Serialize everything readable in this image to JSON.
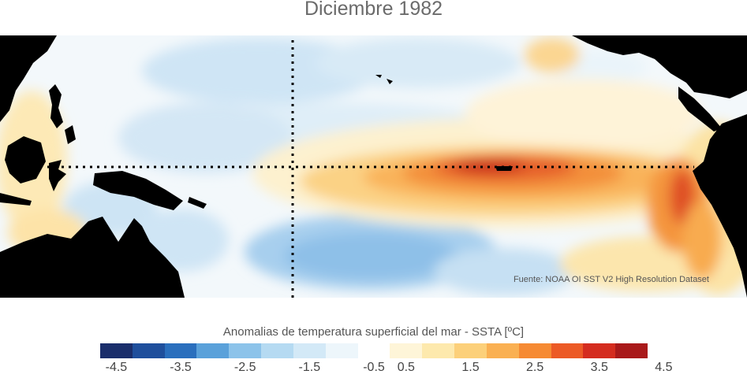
{
  "title": "Diciembre 1982",
  "source": "Fuente: NOAA OI SST V2 High Resolution Dataset",
  "colorbar": {
    "title": "Anomalias de temperatura superficial del mar - SSTA  [ºC]",
    "colors": [
      "#1a2e6b",
      "#1f4f9c",
      "#2a6fbd",
      "#5aa1da",
      "#8cc3ea",
      "#b5daf2",
      "#d3e9f7",
      "#edf6fb",
      "#ffffff",
      "#fef5d8",
      "#fde9ad",
      "#fcd07a",
      "#fab052",
      "#f68a33",
      "#ec5a26",
      "#d42c1f",
      "#a9191a"
    ],
    "ticks": [
      "-4.5",
      "-3.5",
      "-2.5",
      "-1.5",
      "-0.5",
      "0.5",
      "1.5",
      "2.5",
      "3.5",
      "4.5"
    ]
  },
  "map": {
    "land_color": "#000000",
    "reference_lines": [
      "equator",
      "date-line"
    ]
  }
}
